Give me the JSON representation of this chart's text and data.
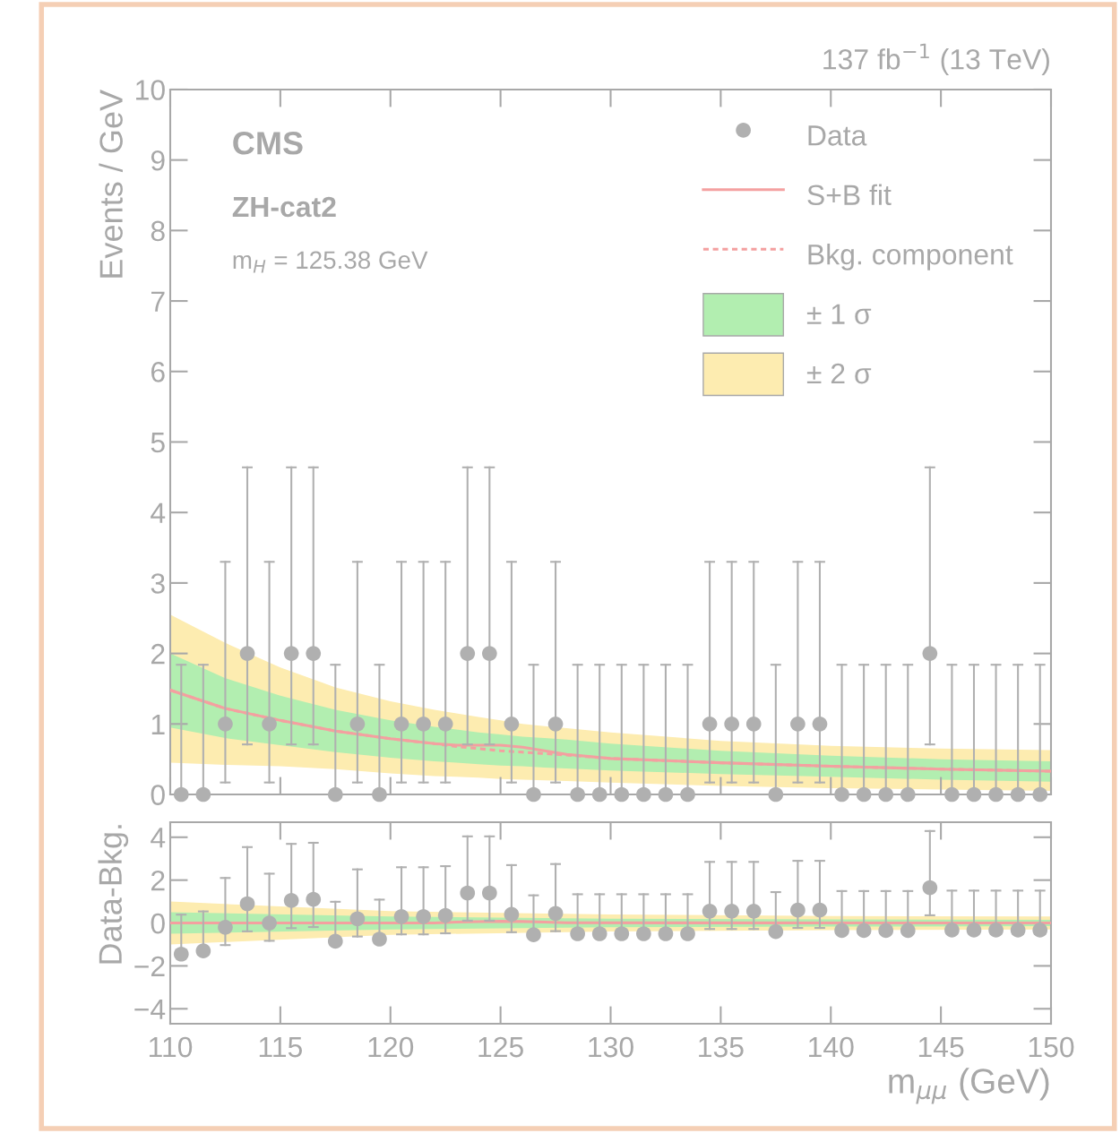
{
  "chart_data": [
    {
      "type": "scatter",
      "ylabel": "Events / GeV",
      "xlim": [
        110,
        150
      ],
      "ylim": [
        0,
        10
      ],
      "xticks": [
        110,
        115,
        120,
        125,
        130,
        135,
        140,
        145,
        150
      ],
      "yticks": [
        0,
        1,
        2,
        3,
        4,
        5,
        6,
        7,
        8,
        9,
        10
      ],
      "tick_labels": "y",
      "legend": "top right",
      "grid": false,
      "annotations": [
        "137 fb$^{−1}$ (13 TeV)",
        "CMS",
        "ZH-cat2",
        "m$_{H}$ = 125.38 GeV"
      ],
      "series": [
        {
          "name": "Data",
          "marker": "circle",
          "color": "#b0b0b0",
          "x": [
            110.5,
            111.5,
            112.5,
            113.5,
            114.5,
            115.5,
            116.5,
            117.5,
            118.5,
            119.5,
            120.5,
            121.5,
            122.5,
            123.5,
            124.5,
            125.5,
            126.5,
            127.5,
            128.5,
            129.5,
            130.5,
            131.5,
            132.5,
            133.5,
            134.5,
            135.5,
            136.5,
            137.5,
            138.5,
            139.5,
            140.5,
            141.5,
            142.5,
            143.5,
            144.5,
            145.5,
            146.5,
            147.5,
            148.5,
            149.5
          ],
          "values": [
            0,
            0,
            1,
            2,
            1,
            2,
            2,
            0,
            1,
            0,
            1,
            1,
            1,
            2,
            2,
            1,
            0,
            1,
            0,
            0,
            0,
            0,
            0,
            0,
            1,
            1,
            1,
            0,
            1,
            1,
            0,
            0,
            0,
            0,
            2,
            0,
            0,
            0,
            0,
            0
          ],
          "errors": [
            [
              0,
              1.84
            ],
            [
              0,
              1.84
            ],
            [
              0.17,
              3.3
            ],
            [
              0.71,
              4.64
            ],
            [
              0.17,
              3.3
            ],
            [
              0.71,
              4.64
            ],
            [
              0.71,
              4.64
            ],
            [
              0,
              1.84
            ],
            [
              0.17,
              3.3
            ],
            [
              0,
              1.84
            ],
            [
              0.17,
              3.3
            ],
            [
              0.17,
              3.3
            ],
            [
              0.17,
              3.3
            ],
            [
              0.71,
              4.64
            ],
            [
              0.71,
              4.64
            ],
            [
              0.17,
              3.3
            ],
            [
              0,
              1.84
            ],
            [
              0.17,
              3.3
            ],
            [
              0,
              1.84
            ],
            [
              0,
              1.84
            ],
            [
              0,
              1.84
            ],
            [
              0,
              1.84
            ],
            [
              0,
              1.84
            ],
            [
              0,
              1.84
            ],
            [
              0.17,
              3.3
            ],
            [
              0.17,
              3.3
            ],
            [
              0.17,
              3.3
            ],
            [
              0,
              1.84
            ],
            [
              0.17,
              3.3
            ],
            [
              0.17,
              3.3
            ],
            [
              0,
              1.84
            ],
            [
              0,
              1.84
            ],
            [
              0,
              1.84
            ],
            [
              0,
              1.84
            ],
            [
              0.71,
              4.64
            ],
            [
              0,
              1.84
            ],
            [
              0,
              1.84
            ],
            [
              0,
              1.84
            ],
            [
              0,
              1.84
            ],
            [
              0,
              1.84
            ]
          ]
        },
        {
          "name": "S+B fit",
          "type": "line",
          "line_style": "solid",
          "color": "#f4a0a0",
          "x": [
            110,
            112.5,
            115,
            117.5,
            120,
            122,
            123,
            124,
            125,
            126,
            127,
            128,
            130,
            135,
            140,
            145,
            150
          ],
          "values": [
            1.48,
            1.22,
            1.05,
            0.9,
            0.79,
            0.72,
            0.7,
            0.7,
            0.7,
            0.67,
            0.62,
            0.57,
            0.51,
            0.45,
            0.4,
            0.36,
            0.33
          ]
        },
        {
          "name": "Bkg. component",
          "type": "line",
          "line_style": "dotted",
          "color": "#f4a0a0",
          "x": [
            110,
            112.5,
            115,
            117.5,
            120,
            122,
            123,
            124,
            125,
            126,
            127,
            128,
            130,
            135,
            140,
            145,
            150
          ],
          "values": [
            1.48,
            1.22,
            1.05,
            0.9,
            0.79,
            0.72,
            0.68,
            0.65,
            0.62,
            0.6,
            0.58,
            0.56,
            0.51,
            0.45,
            0.4,
            0.36,
            0.33
          ]
        },
        {
          "name": "± 1 σ",
          "type": "line",
          "color": "#b2eeb0",
          "x": [
            110,
            112.5,
            115,
            117.5,
            120,
            122,
            123,
            124,
            125,
            126,
            127,
            128,
            130,
            135,
            140,
            145,
            150
          ],
          "values": [
            null,
            null,
            null,
            null,
            null,
            null,
            null,
            null,
            null,
            null,
            null,
            null,
            null,
            null,
            null,
            null,
            null
          ],
          "lower": [
            0.95,
            0.8,
            0.7,
            0.6,
            0.52,
            0.47,
            0.45,
            0.43,
            0.41,
            0.4,
            0.38,
            0.37,
            0.34,
            0.29,
            0.25,
            0.21,
            0.18
          ],
          "upper": [
            2.0,
            1.65,
            1.4,
            1.2,
            1.05,
            0.96,
            0.92,
            0.88,
            0.85,
            0.82,
            0.8,
            0.78,
            0.72,
            0.62,
            0.55,
            0.5,
            0.47
          ]
        },
        {
          "name": "± 2 σ",
          "type": "line",
          "color": "#fdecb0",
          "x": [
            110,
            112.5,
            115,
            117.5,
            120,
            122,
            123,
            124,
            125,
            126,
            127,
            128,
            130,
            135,
            140,
            145,
            150
          ],
          "values": [
            null,
            null,
            null,
            null,
            null,
            null,
            null,
            null,
            null,
            null,
            null,
            null,
            null,
            null,
            null,
            null,
            null
          ],
          "lower": [
            0.45,
            0.42,
            0.4,
            0.36,
            0.3,
            0.26,
            0.25,
            0.24,
            0.22,
            0.21,
            0.2,
            0.19,
            0.17,
            0.12,
            0.09,
            0.07,
            0.05
          ],
          "upper": [
            2.55,
            2.15,
            1.8,
            1.52,
            1.32,
            1.2,
            1.15,
            1.1,
            1.05,
            1.0,
            0.97,
            0.94,
            0.88,
            0.76,
            0.69,
            0.65,
            0.63
          ]
        }
      ]
    },
    {
      "type": "scatter",
      "xlabel": "m$_{μμ}$ (GeV)",
      "ylabel": "Data-Bkg.",
      "xlim": [
        110,
        150
      ],
      "ylim": [
        -4.7,
        4.7
      ],
      "xticks": [
        110,
        115,
        120,
        125,
        130,
        135,
        140,
        145,
        150
      ],
      "yticks": [
        {
          "value": -4,
          "label": "−4"
        },
        {
          "value": -2,
          "label": "−2"
        },
        0,
        2,
        4
      ],
      "grid": false,
      "series": [
        {
          "marker": "circle",
          "color": "#b0b0b0",
          "x": [
            110.5,
            111.5,
            112.5,
            113.5,
            114.5,
            115.5,
            116.5,
            117.5,
            118.5,
            119.5,
            120.5,
            121.5,
            122.5,
            123.5,
            124.5,
            125.5,
            126.5,
            127.5,
            128.5,
            129.5,
            130.5,
            131.5,
            132.5,
            133.5,
            134.5,
            135.5,
            136.5,
            137.5,
            138.5,
            139.5,
            140.5,
            141.5,
            142.5,
            143.5,
            144.5,
            145.5,
            146.5,
            147.5,
            148.5,
            149.5
          ],
          "values": [
            -1.45,
            -1.3,
            -0.2,
            0.9,
            0,
            1.05,
            1.1,
            -0.85,
            0.2,
            -0.75,
            0.3,
            0.3,
            0.35,
            1.4,
            1.4,
            0.4,
            -0.55,
            0.45,
            -0.5,
            -0.5,
            -0.5,
            -0.5,
            -0.5,
            -0.5,
            0.55,
            0.55,
            0.55,
            -0.4,
            0.6,
            0.6,
            -0.35,
            -0.35,
            -0.35,
            -0.35,
            1.65,
            -0.33,
            -0.33,
            -0.33,
            -0.33,
            -0.33
          ],
          "errors": [
            [
              -1.45,
              0.39
            ],
            [
              -1.3,
              0.54
            ],
            [
              -1.03,
              2.1
            ],
            [
              -0.39,
              3.54
            ],
            [
              -0.83,
              2.3
            ],
            [
              -0.24,
              3.69
            ],
            [
              -0.19,
              3.74
            ],
            [
              -0.85,
              0.99
            ],
            [
              -0.63,
              2.5
            ],
            [
              -0.75,
              1.09
            ],
            [
              -0.53,
              2.6
            ],
            [
              -0.53,
              2.6
            ],
            [
              -0.48,
              2.65
            ],
            [
              0.11,
              4.04
            ],
            [
              0.11,
              4.04
            ],
            [
              -0.43,
              2.7
            ],
            [
              -0.55,
              1.29
            ],
            [
              -0.38,
              2.75
            ],
            [
              -0.5,
              1.34
            ],
            [
              -0.5,
              1.34
            ],
            [
              -0.5,
              1.34
            ],
            [
              -0.5,
              1.34
            ],
            [
              -0.5,
              1.34
            ],
            [
              -0.5,
              1.34
            ],
            [
              -0.28,
              2.85
            ],
            [
              -0.28,
              2.85
            ],
            [
              -0.28,
              2.85
            ],
            [
              -0.4,
              1.44
            ],
            [
              -0.23,
              2.9
            ],
            [
              -0.23,
              2.9
            ],
            [
              -0.35,
              1.49
            ],
            [
              -0.35,
              1.49
            ],
            [
              -0.35,
              1.49
            ],
            [
              -0.35,
              1.49
            ],
            [
              0.36,
              4.29
            ],
            [
              -0.33,
              1.51
            ],
            [
              -0.33,
              1.51
            ],
            [
              -0.33,
              1.51
            ],
            [
              -0.33,
              1.51
            ],
            [
              -0.33,
              1.51
            ]
          ]
        },
        {
          "type": "line",
          "line_style": "solid",
          "color": "#f4a0a0",
          "x": [
            110,
            122,
            123,
            124,
            125,
            126,
            127,
            128,
            150
          ],
          "values": [
            0,
            0,
            0.04,
            0.06,
            0.08,
            0.07,
            0.04,
            0.01,
            0
          ]
        },
        {
          "type": "line",
          "color": "#b2eeb0",
          "x": [
            110,
            120,
            130,
            140,
            150
          ],
          "values": [
            null,
            null,
            null,
            null,
            null
          ],
          "lower": [
            -0.5,
            -0.3,
            -0.2,
            -0.17,
            -0.15
          ],
          "upper": [
            0.5,
            0.3,
            0.2,
            0.17,
            0.15
          ]
        },
        {
          "type": "line",
          "color": "#fdecb0",
          "x": [
            110,
            120,
            130,
            140,
            150
          ],
          "values": [
            null,
            null,
            null,
            null,
            null
          ],
          "lower": [
            -1.0,
            -0.55,
            -0.4,
            -0.33,
            -0.3
          ],
          "upper": [
            1.0,
            0.55,
            0.4,
            0.33,
            0.3
          ]
        }
      ]
    }
  ]
}
